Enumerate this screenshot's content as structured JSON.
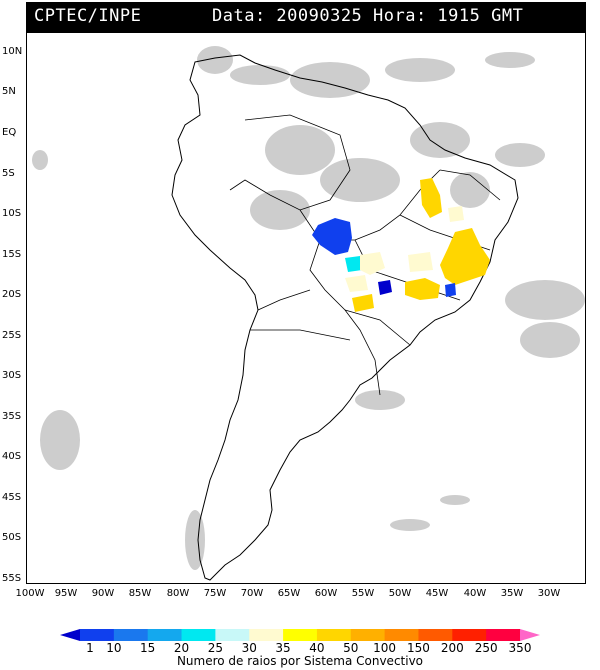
{
  "header": {
    "source": "CPTEC/INPE",
    "datetime": "Data: 20090325 Hora: 1915 GMT"
  },
  "axes": {
    "lat_labels": [
      "10N",
      "5N",
      "EQ",
      "5S",
      "10S",
      "15S",
      "20S",
      "25S",
      "30S",
      "35S",
      "40S",
      "45S",
      "50S",
      "55S"
    ],
    "lon_labels": [
      "100W",
      "95W",
      "90W",
      "85W",
      "80W",
      "75W",
      "70W",
      "65W",
      "60W",
      "55W",
      "50W",
      "45W",
      "40W",
      "35W",
      "30W"
    ]
  },
  "legend": {
    "title": "Numero de raios por Sistema Convectivo",
    "labels": [
      "1",
      "10",
      "15",
      "20",
      "25",
      "30",
      "35",
      "40",
      "50",
      "100",
      "150",
      "200",
      "250",
      "350"
    ],
    "colors": [
      "#0000cc",
      "#1040ee",
      "#1a78ee",
      "#14a8ee",
      "#00e8f0",
      "#c8f8f8",
      "#fffad0",
      "#ffff00",
      "#ffd600",
      "#ffb000",
      "#ff8a00",
      "#ff5a00",
      "#ff2000",
      "#ff0040",
      "#ff66c8"
    ]
  }
}
